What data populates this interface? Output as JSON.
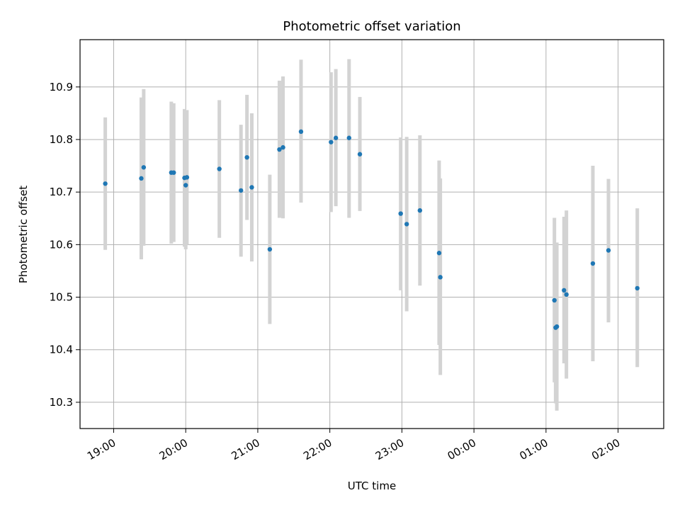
{
  "chart_data": {
    "type": "scatter",
    "title": "Photometric offset variation",
    "xlabel": "UTC time",
    "ylabel": "Photometric offset",
    "x_axis": {
      "kind": "time",
      "start_date": "",
      "min": "18:32",
      "max": "02:38",
      "ticks": [
        "19:00",
        "20:00",
        "21:00",
        "22:00",
        "23:00",
        "00:00",
        "01:00",
        "02:00"
      ]
    },
    "y_axis": {
      "min": 10.25,
      "max": 10.99,
      "ticks": [
        "10.3",
        "10.4",
        "10.5",
        "10.6",
        "10.7",
        "10.8",
        "10.9"
      ]
    },
    "grid": true,
    "colors": {
      "points": "#1f77b4",
      "errorbars": "#d3d3d3",
      "grid": "#b0b0b0"
    },
    "series": [
      {
        "points": [
          {
            "t": "18:53",
            "y": 10.716,
            "lo": 10.59,
            "hi": 10.842
          },
          {
            "t": "19:23",
            "y": 10.726,
            "lo": 10.572,
            "hi": 10.88
          },
          {
            "t": "19:25",
            "y": 10.747,
            "lo": 10.598,
            "hi": 10.896
          },
          {
            "t": "19:48",
            "y": 10.737,
            "lo": 10.602,
            "hi": 10.872
          },
          {
            "t": "19:50",
            "y": 10.737,
            "lo": 10.605,
            "hi": 10.869
          },
          {
            "t": "19:59",
            "y": 10.727,
            "lo": 10.596,
            "hi": 10.858
          },
          {
            "t": "20:00",
            "y": 10.713,
            "lo": 10.591,
            "hi": 10.835
          },
          {
            "t": "20:01",
            "y": 10.728,
            "lo": 10.6,
            "hi": 10.856
          },
          {
            "t": "20:28",
            "y": 10.744,
            "lo": 10.613,
            "hi": 10.875
          },
          {
            "t": "20:46",
            "y": 10.703,
            "lo": 10.577,
            "hi": 10.828
          },
          {
            "t": "20:51",
            "y": 10.766,
            "lo": 10.647,
            "hi": 10.885
          },
          {
            "t": "20:55",
            "y": 10.709,
            "lo": 10.568,
            "hi": 10.85
          },
          {
            "t": "21:10",
            "y": 10.591,
            "lo": 10.449,
            "hi": 10.733
          },
          {
            "t": "21:18",
            "y": 10.781,
            "lo": 10.651,
            "hi": 10.912
          },
          {
            "t": "21:21",
            "y": 10.785,
            "lo": 10.65,
            "hi": 10.92
          },
          {
            "t": "21:36",
            "y": 10.815,
            "lo": 10.68,
            "hi": 10.952
          },
          {
            "t": "22:01",
            "y": 10.795,
            "lo": 10.662,
            "hi": 10.928
          },
          {
            "t": "22:05",
            "y": 10.803,
            "lo": 10.673,
            "hi": 10.934
          },
          {
            "t": "22:16",
            "y": 10.803,
            "lo": 10.651,
            "hi": 10.953
          },
          {
            "t": "22:25",
            "y": 10.772,
            "lo": 10.664,
            "hi": 10.881
          },
          {
            "t": "22:59",
            "y": 10.659,
            "lo": 10.513,
            "hi": 10.804
          },
          {
            "t": "23:04",
            "y": 10.639,
            "lo": 10.473,
            "hi": 10.805
          },
          {
            "t": "23:15",
            "y": 10.665,
            "lo": 10.522,
            "hi": 10.808
          },
          {
            "t": "23:31",
            "y": 10.584,
            "lo": 10.409,
            "hi": 10.76
          },
          {
            "t": "23:32",
            "y": 10.538,
            "lo": 10.352,
            "hi": 10.726
          },
          {
            "t": "01:07",
            "y": 10.494,
            "lo": 10.338,
            "hi": 10.651
          },
          {
            "t": "01:08",
            "y": 10.442,
            "lo": 10.298,
            "hi": 10.599
          },
          {
            "t": "01:09",
            "y": 10.444,
            "lo": 10.284,
            "hi": 10.604
          },
          {
            "t": "01:15",
            "y": 10.513,
            "lo": 10.374,
            "hi": 10.653
          },
          {
            "t": "01:17",
            "y": 10.505,
            "lo": 10.345,
            "hi": 10.665
          },
          {
            "t": "01:39",
            "y": 10.564,
            "lo": 10.378,
            "hi": 10.75
          },
          {
            "t": "01:52",
            "y": 10.589,
            "lo": 10.452,
            "hi": 10.725
          },
          {
            "t": "02:16",
            "y": 10.517,
            "lo": 10.367,
            "hi": 10.669
          }
        ]
      }
    ]
  }
}
